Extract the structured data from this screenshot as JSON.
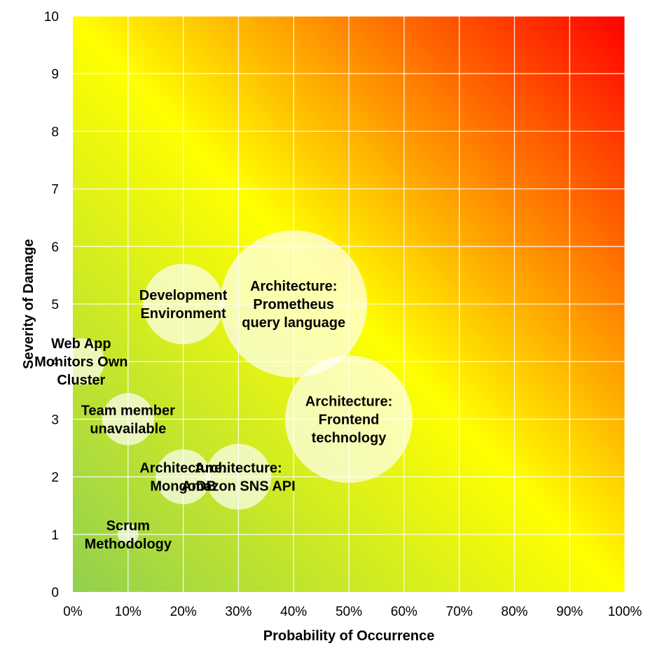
{
  "chart_data": {
    "type": "bubble",
    "xlabel": "Probability of Occurrence",
    "ylabel": "Severity of Damage",
    "xlim": [
      0,
      100
    ],
    "ylim": [
      0,
      10
    ],
    "x_ticks": [
      "0%",
      "10%",
      "20%",
      "30%",
      "40%",
      "50%",
      "60%",
      "70%",
      "80%",
      "90%",
      "100%"
    ],
    "y_ticks": [
      "0",
      "1",
      "2",
      "3",
      "4",
      "5",
      "6",
      "7",
      "8",
      "9",
      "10"
    ],
    "grid": true,
    "legend": "none",
    "background_gradient": {
      "low_risk": "#92d050",
      "medium_risk": "#ffff00",
      "high_risk": "#ff0000"
    },
    "bubble_color": "#ffffff",
    "points": [
      {
        "label": "Development Environment",
        "x": 20,
        "y": 5,
        "size": 3
      },
      {
        "label": "Architecture: Prometheus query language",
        "x": 40,
        "y": 5,
        "size": 10
      },
      {
        "label": "Web App Monitors Own Cluster",
        "x": 1.5,
        "y": 4,
        "size": 1
      },
      {
        "label": "Team member unavailable",
        "x": 10,
        "y": 3,
        "size": 1.25
      },
      {
        "label": "Architecture: Frontend technology",
        "x": 50,
        "y": 3,
        "size": 7.5
      },
      {
        "label": "Architecture: MongoDB",
        "x": 20,
        "y": 2,
        "size": 1.4
      },
      {
        "label": "Architecture: Amazon SNS API",
        "x": 30,
        "y": 2,
        "size": 2
      },
      {
        "label": "Scrum Methodology",
        "x": 10,
        "y": 1,
        "size": 0.2
      }
    ]
  }
}
